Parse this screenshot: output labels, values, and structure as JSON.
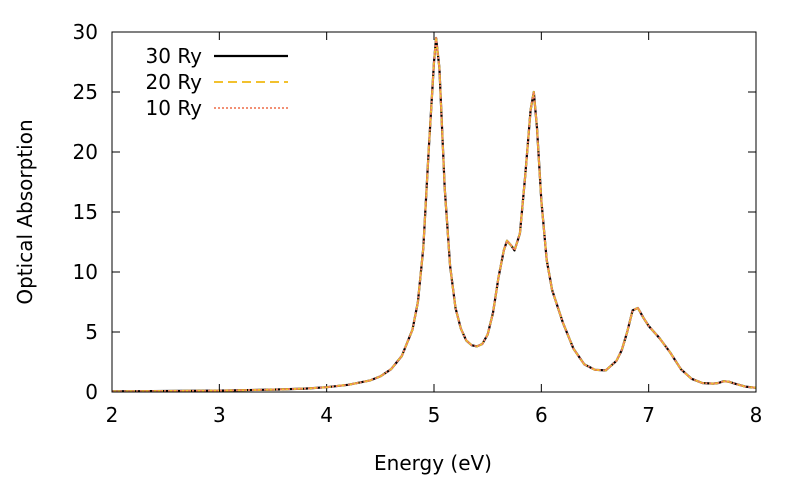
{
  "chart_data": {
    "type": "line",
    "title": "",
    "xlabel": "Energy (eV)",
    "ylabel": "Optical Absorption",
    "xlim": [
      2,
      8
    ],
    "ylim": [
      0,
      30
    ],
    "xticks": [
      2,
      3,
      4,
      5,
      6,
      7,
      8
    ],
    "yticks": [
      0,
      5,
      10,
      15,
      20,
      25,
      30
    ],
    "grid": false,
    "legend_position": "top-left",
    "x": [
      2.0,
      2.5,
      3.0,
      3.5,
      3.8,
      4.0,
      4.2,
      4.4,
      4.5,
      4.6,
      4.7,
      4.8,
      4.85,
      4.9,
      4.95,
      5.0,
      5.02,
      5.05,
      5.1,
      5.15,
      5.2,
      5.25,
      5.3,
      5.35,
      5.4,
      5.45,
      5.5,
      5.55,
      5.6,
      5.65,
      5.68,
      5.72,
      5.75,
      5.8,
      5.85,
      5.9,
      5.93,
      5.96,
      6.0,
      6.05,
      6.1,
      6.2,
      6.3,
      6.4,
      6.5,
      6.6,
      6.7,
      6.75,
      6.8,
      6.85,
      6.9,
      6.95,
      7.0,
      7.1,
      7.2,
      7.3,
      7.4,
      7.5,
      7.6,
      7.65,
      7.7,
      7.75,
      7.8,
      7.9,
      8.0
    ],
    "series": [
      {
        "name": "30 Ry",
        "color": "#000000",
        "style": "solid",
        "values": [
          0.05,
          0.08,
          0.12,
          0.2,
          0.28,
          0.4,
          0.6,
          0.95,
          1.3,
          1.9,
          3.0,
          5.2,
          7.5,
          12.0,
          20.0,
          27.5,
          29.5,
          27.0,
          17.0,
          10.5,
          7.0,
          5.3,
          4.3,
          3.9,
          3.8,
          4.0,
          4.8,
          6.6,
          9.5,
          11.8,
          12.6,
          12.2,
          11.8,
          13.2,
          18.0,
          23.5,
          25.0,
          22.0,
          16.0,
          11.0,
          8.5,
          5.8,
          3.6,
          2.3,
          1.85,
          1.8,
          2.6,
          3.5,
          5.0,
          6.8,
          7.0,
          6.2,
          5.5,
          4.5,
          3.3,
          1.9,
          1.1,
          0.75,
          0.7,
          0.75,
          0.9,
          0.85,
          0.7,
          0.45,
          0.35
        ]
      },
      {
        "name": "20 Ry",
        "color": "#f2c12e",
        "style": "dashed",
        "values": [
          0.05,
          0.08,
          0.12,
          0.2,
          0.28,
          0.4,
          0.6,
          0.95,
          1.3,
          1.9,
          3.0,
          5.2,
          7.5,
          12.0,
          20.0,
          27.5,
          29.5,
          27.0,
          17.0,
          10.5,
          7.0,
          5.3,
          4.3,
          3.9,
          3.8,
          4.0,
          4.8,
          6.6,
          9.5,
          11.8,
          12.6,
          12.2,
          11.8,
          13.2,
          18.0,
          23.5,
          25.0,
          22.0,
          16.0,
          11.0,
          8.5,
          5.8,
          3.6,
          2.3,
          1.85,
          1.8,
          2.6,
          3.5,
          5.0,
          6.8,
          7.0,
          6.2,
          5.5,
          4.5,
          3.3,
          1.9,
          1.1,
          0.75,
          0.7,
          0.75,
          0.9,
          0.85,
          0.7,
          0.45,
          0.35
        ]
      },
      {
        "name": "10 Ry",
        "color": "#f08060",
        "style": "dotted",
        "values": [
          0.05,
          0.08,
          0.12,
          0.2,
          0.28,
          0.4,
          0.6,
          0.95,
          1.3,
          1.9,
          3.0,
          5.2,
          7.5,
          12.0,
          20.0,
          27.5,
          29.5,
          27.0,
          17.0,
          10.5,
          7.0,
          5.3,
          4.3,
          3.9,
          3.8,
          4.0,
          4.8,
          6.6,
          9.5,
          11.8,
          12.6,
          12.2,
          11.8,
          13.2,
          18.0,
          23.5,
          25.0,
          22.0,
          16.0,
          11.0,
          8.5,
          5.8,
          3.6,
          2.3,
          1.85,
          1.8,
          2.6,
          3.5,
          5.0,
          6.8,
          7.0,
          6.2,
          5.5,
          4.5,
          3.3,
          1.9,
          1.1,
          0.75,
          0.7,
          0.75,
          0.9,
          0.85,
          0.7,
          0.45,
          0.35
        ]
      }
    ]
  }
}
